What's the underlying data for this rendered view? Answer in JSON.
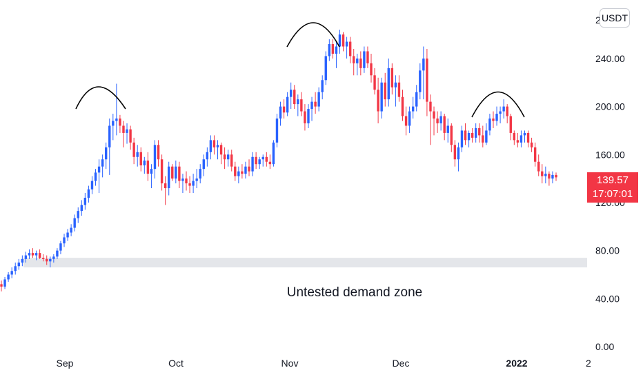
{
  "chart_data": {
    "type": "candlestick",
    "currency": "USDT",
    "y_axis": {
      "ticks": [
        "0.00",
        "40.00",
        "80.00",
        "120.00",
        "160.00",
        "200.00",
        "240.00"
      ],
      "top_tick_partial": "2",
      "ylim": [
        0,
        283
      ]
    },
    "x_axis": {
      "ticks": [
        {
          "label": "Sep",
          "bold": false
        },
        {
          "label": "Oct",
          "bold": false
        },
        {
          "label": "Nov",
          "bold": false
        },
        {
          "label": "Dec",
          "bold": false
        },
        {
          "label": "2022",
          "bold": true
        },
        {
          "label": "2",
          "bold": false
        }
      ]
    },
    "last_price": {
      "value": "139.57",
      "countdown": "17:07:01",
      "numeric": 139.57
    },
    "annotations": {
      "zone_label": "Untested demand zone",
      "zone_range": [
        66,
        74
      ]
    },
    "colors": {
      "up": "#2962ff",
      "down": "#f23645",
      "zone": "#e4e6ea",
      "last_price_bg": "#f23645"
    },
    "candles": [
      [
        52,
        55,
        46,
        50
      ],
      [
        50,
        58,
        48,
        56
      ],
      [
        56,
        62,
        54,
        60
      ],
      [
        60,
        66,
        57,
        63
      ],
      [
        63,
        70,
        60,
        67
      ],
      [
        67,
        73,
        64,
        70
      ],
      [
        70,
        76,
        67,
        73
      ],
      [
        73,
        79,
        70,
        76
      ],
      [
        76,
        81,
        73,
        78
      ],
      [
        78,
        82,
        74,
        76
      ],
      [
        76,
        80,
        72,
        78
      ],
      [
        78,
        81,
        73,
        74
      ],
      [
        74,
        77,
        71,
        73
      ],
      [
        73,
        76,
        68,
        71
      ],
      [
        71,
        75,
        66,
        73
      ],
      [
        73,
        77,
        70,
        75
      ],
      [
        75,
        82,
        73,
        80
      ],
      [
        80,
        88,
        77,
        86
      ],
      [
        86,
        94,
        83,
        91
      ],
      [
        91,
        98,
        88,
        95
      ],
      [
        95,
        102,
        92,
        99
      ],
      [
        99,
        110,
        96,
        107
      ],
      [
        107,
        116,
        103,
        113
      ],
      [
        113,
        122,
        109,
        118
      ],
      [
        118,
        128,
        114,
        124
      ],
      [
        124,
        134,
        120,
        131
      ],
      [
        131,
        142,
        127,
        138
      ],
      [
        138,
        148,
        134,
        145
      ],
      [
        145,
        156,
        128,
        150
      ],
      [
        150,
        160,
        141,
        156
      ],
      [
        156,
        170,
        148,
        166
      ],
      [
        166,
        190,
        143,
        184
      ],
      [
        184,
        194,
        172,
        188
      ],
      [
        188,
        219,
        176,
        190
      ],
      [
        190,
        193,
        178,
        184
      ],
      [
        184,
        188,
        166,
        178
      ],
      [
        178,
        186,
        169,
        181
      ],
      [
        181,
        184,
        164,
        170
      ],
      [
        170,
        174,
        152,
        158
      ],
      [
        158,
        168,
        150,
        162
      ],
      [
        162,
        166,
        146,
        151
      ],
      [
        151,
        158,
        144,
        155
      ],
      [
        155,
        162,
        138,
        144
      ],
      [
        144,
        152,
        132,
        148
      ],
      [
        148,
        172,
        140,
        168
      ],
      [
        168,
        172,
        150,
        156
      ],
      [
        156,
        160,
        130,
        136
      ],
      [
        136,
        142,
        118,
        132
      ],
      [
        132,
        154,
        126,
        150
      ],
      [
        150,
        152,
        138,
        140
      ],
      [
        140,
        155,
        136,
        150
      ],
      [
        150,
        154,
        132,
        138
      ],
      [
        138,
        144,
        128,
        140
      ],
      [
        140,
        146,
        130,
        136
      ],
      [
        136,
        142,
        128,
        134
      ],
      [
        134,
        144,
        128,
        138
      ],
      [
        138,
        148,
        132,
        140
      ],
      [
        140,
        152,
        136,
        148
      ],
      [
        148,
        160,
        142,
        156
      ],
      [
        156,
        166,
        150,
        162
      ],
      [
        162,
        176,
        156,
        172
      ],
      [
        172,
        176,
        160,
        166
      ],
      [
        166,
        172,
        156,
        168
      ],
      [
        168,
        170,
        152,
        160
      ],
      [
        160,
        166,
        148,
        156
      ],
      [
        156,
        164,
        150,
        160
      ],
      [
        160,
        164,
        146,
        150
      ],
      [
        150,
        154,
        138,
        142
      ],
      [
        142,
        150,
        136,
        146
      ],
      [
        146,
        152,
        140,
        144
      ],
      [
        144,
        154,
        140,
        150
      ],
      [
        150,
        156,
        142,
        146
      ],
      [
        146,
        162,
        142,
        158
      ],
      [
        158,
        162,
        148,
        152
      ],
      [
        152,
        158,
        148,
        156
      ],
      [
        156,
        160,
        150,
        158
      ],
      [
        158,
        162,
        150,
        154
      ],
      [
        154,
        160,
        148,
        152
      ],
      [
        152,
        172,
        150,
        170
      ],
      [
        170,
        194,
        166,
        190
      ],
      [
        190,
        204,
        184,
        200
      ],
      [
        200,
        206,
        190,
        195
      ],
      [
        195,
        212,
        192,
        208
      ],
      [
        208,
        220,
        198,
        214
      ],
      [
        214,
        218,
        198,
        202
      ],
      [
        202,
        210,
        192,
        206
      ],
      [
        206,
        212,
        192,
        196
      ],
      [
        196,
        202,
        180,
        186
      ],
      [
        186,
        202,
        182,
        198
      ],
      [
        198,
        208,
        188,
        204
      ],
      [
        204,
        212,
        194,
        200
      ],
      [
        200,
        216,
        196,
        212
      ],
      [
        212,
        226,
        206,
        222
      ],
      [
        222,
        246,
        218,
        242
      ],
      [
        242,
        256,
        238,
        252
      ],
      [
        252,
        256,
        240,
        244
      ],
      [
        244,
        254,
        232,
        250
      ],
      [
        250,
        264,
        244,
        260
      ],
      [
        260,
        262,
        246,
        250
      ],
      [
        250,
        258,
        240,
        254
      ],
      [
        254,
        258,
        236,
        242
      ],
      [
        242,
        248,
        226,
        236
      ],
      [
        236,
        244,
        226,
        240
      ],
      [
        240,
        246,
        226,
        232
      ],
      [
        232,
        250,
        228,
        246
      ],
      [
        246,
        250,
        232,
        236
      ],
      [
        236,
        244,
        220,
        226
      ],
      [
        226,
        232,
        210,
        214
      ],
      [
        214,
        224,
        186,
        196
      ],
      [
        196,
        224,
        190,
        220
      ],
      [
        220,
        228,
        200,
        206
      ],
      [
        206,
        240,
        200,
        232
      ],
      [
        232,
        236,
        210,
        216
      ],
      [
        216,
        226,
        200,
        220
      ],
      [
        220,
        226,
        204,
        208
      ],
      [
        208,
        214,
        188,
        192
      ],
      [
        192,
        200,
        176,
        184
      ],
      [
        184,
        200,
        178,
        196
      ],
      [
        196,
        208,
        190,
        200
      ],
      [
        200,
        218,
        196,
        212
      ],
      [
        212,
        236,
        206,
        230
      ],
      [
        230,
        250,
        206,
        240
      ],
      [
        240,
        248,
        192,
        204
      ],
      [
        204,
        210,
        168,
        196
      ],
      [
        196,
        200,
        176,
        190
      ],
      [
        190,
        196,
        178,
        186
      ],
      [
        186,
        196,
        180,
        192
      ],
      [
        192,
        194,
        172,
        178
      ],
      [
        178,
        190,
        170,
        184
      ],
      [
        184,
        186,
        162,
        168
      ],
      [
        168,
        172,
        150,
        156
      ],
      [
        156,
        170,
        146,
        166
      ],
      [
        166,
        184,
        162,
        180
      ],
      [
        180,
        186,
        168,
        172
      ],
      [
        172,
        180,
        166,
        178
      ],
      [
        178,
        182,
        170,
        174
      ],
      [
        174,
        186,
        170,
        182
      ],
      [
        182,
        186,
        170,
        176
      ],
      [
        176,
        184,
        166,
        170
      ],
      [
        170,
        186,
        168,
        180
      ],
      [
        180,
        194,
        176,
        190
      ],
      [
        190,
        196,
        182,
        188
      ],
      [
        188,
        200,
        184,
        194
      ],
      [
        194,
        200,
        186,
        196
      ],
      [
        196,
        206,
        190,
        200
      ],
      [
        200,
        202,
        186,
        192
      ],
      [
        192,
        194,
        172,
        178
      ],
      [
        178,
        180,
        168,
        172
      ],
      [
        172,
        178,
        166,
        170
      ],
      [
        170,
        180,
        166,
        176
      ],
      [
        176,
        180,
        170,
        178
      ],
      [
        178,
        180,
        166,
        170
      ],
      [
        170,
        174,
        162,
        166
      ],
      [
        166,
        170,
        150,
        154
      ],
      [
        154,
        160,
        142,
        146
      ],
      [
        146,
        152,
        136,
        142
      ],
      [
        142,
        150,
        136,
        144
      ],
      [
        144,
        146,
        134,
        140
      ],
      [
        140,
        146,
        136,
        143
      ],
      [
        143,
        145,
        138,
        141
      ]
    ]
  }
}
